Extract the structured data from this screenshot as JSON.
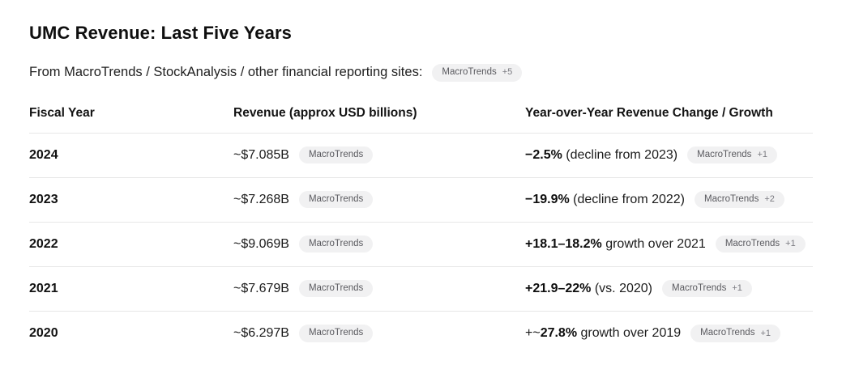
{
  "page": {
    "title": "UMC Revenue: Last Five Years",
    "subtitle": "From MacroTrends / StockAnalysis / other financial reporting sites:",
    "subtitle_badge": {
      "name": "MacroTrends",
      "count": "+5"
    }
  },
  "colors": {
    "badge_bg": "#f1f1f2",
    "badge_text": "#5a5a5f",
    "separator": "#e7e7e7"
  },
  "table": {
    "columns": [
      "Fiscal Year",
      "Revenue (approx USD billions)",
      "Year-over-Year Revenue Change / Growth"
    ],
    "rows": [
      {
        "year": "2024",
        "revenue": "~$7.085B",
        "revenue_badge": {
          "name": "MacroTrends",
          "count": ""
        },
        "growth": {
          "pre": "",
          "bold": "−2.5%",
          "rest": " (decline from 2023)"
        },
        "growth_badge": {
          "name": "MacroTrends",
          "count": "+1"
        }
      },
      {
        "year": "2023",
        "revenue": "~$7.268B",
        "revenue_badge": {
          "name": "MacroTrends",
          "count": ""
        },
        "growth": {
          "pre": "",
          "bold": "−19.9%",
          "rest": " (decline from 2022)"
        },
        "growth_badge": {
          "name": "MacroTrends",
          "count": "+2"
        }
      },
      {
        "year": "2022",
        "revenue": "~$9.069B",
        "revenue_badge": {
          "name": "MacroTrends",
          "count": ""
        },
        "growth": {
          "pre": "",
          "bold": "+18.1–18.2%",
          "rest": " growth over 2021"
        },
        "growth_badge": {
          "name": "MacroTrends",
          "count": "+1"
        }
      },
      {
        "year": "2021",
        "revenue": "~$7.679B",
        "revenue_badge": {
          "name": "MacroTrends",
          "count": ""
        },
        "growth": {
          "pre": "",
          "bold": "+21.9–22%",
          "rest": " (vs. 2020)"
        },
        "growth_badge": {
          "name": "MacroTrends",
          "count": "+1"
        }
      },
      {
        "year": "2020",
        "revenue": "~$6.297B",
        "revenue_badge": {
          "name": "MacroTrends",
          "count": ""
        },
        "growth": {
          "pre": "+~",
          "bold": "27.8%",
          "rest": " growth over 2019"
        },
        "growth_badge": {
          "name": "MacroTrends",
          "count": "+1"
        }
      }
    ]
  }
}
